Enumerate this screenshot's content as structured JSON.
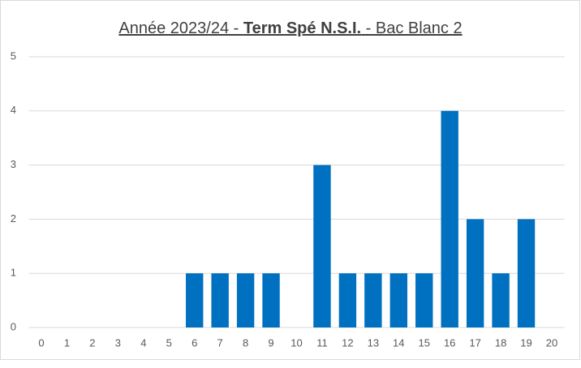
{
  "chart_data": {
    "type": "bar",
    "title": [
      "Année 2023/24 - ",
      "Term Spé N.S.I.",
      " - Bac Blanc 2"
    ],
    "categories": [
      0,
      1,
      2,
      3,
      4,
      5,
      6,
      7,
      8,
      9,
      10,
      11,
      12,
      13,
      14,
      15,
      16,
      17,
      18,
      19,
      20
    ],
    "values": [
      0,
      0,
      0,
      0,
      0,
      0,
      1,
      1,
      1,
      1,
      0,
      3,
      1,
      1,
      1,
      1,
      4,
      2,
      1,
      2,
      0
    ],
    "color": "#0070c0",
    "ylim": [
      0,
      5
    ],
    "yticks": [
      0,
      1,
      2,
      3,
      4,
      5
    ],
    "grid": true
  }
}
